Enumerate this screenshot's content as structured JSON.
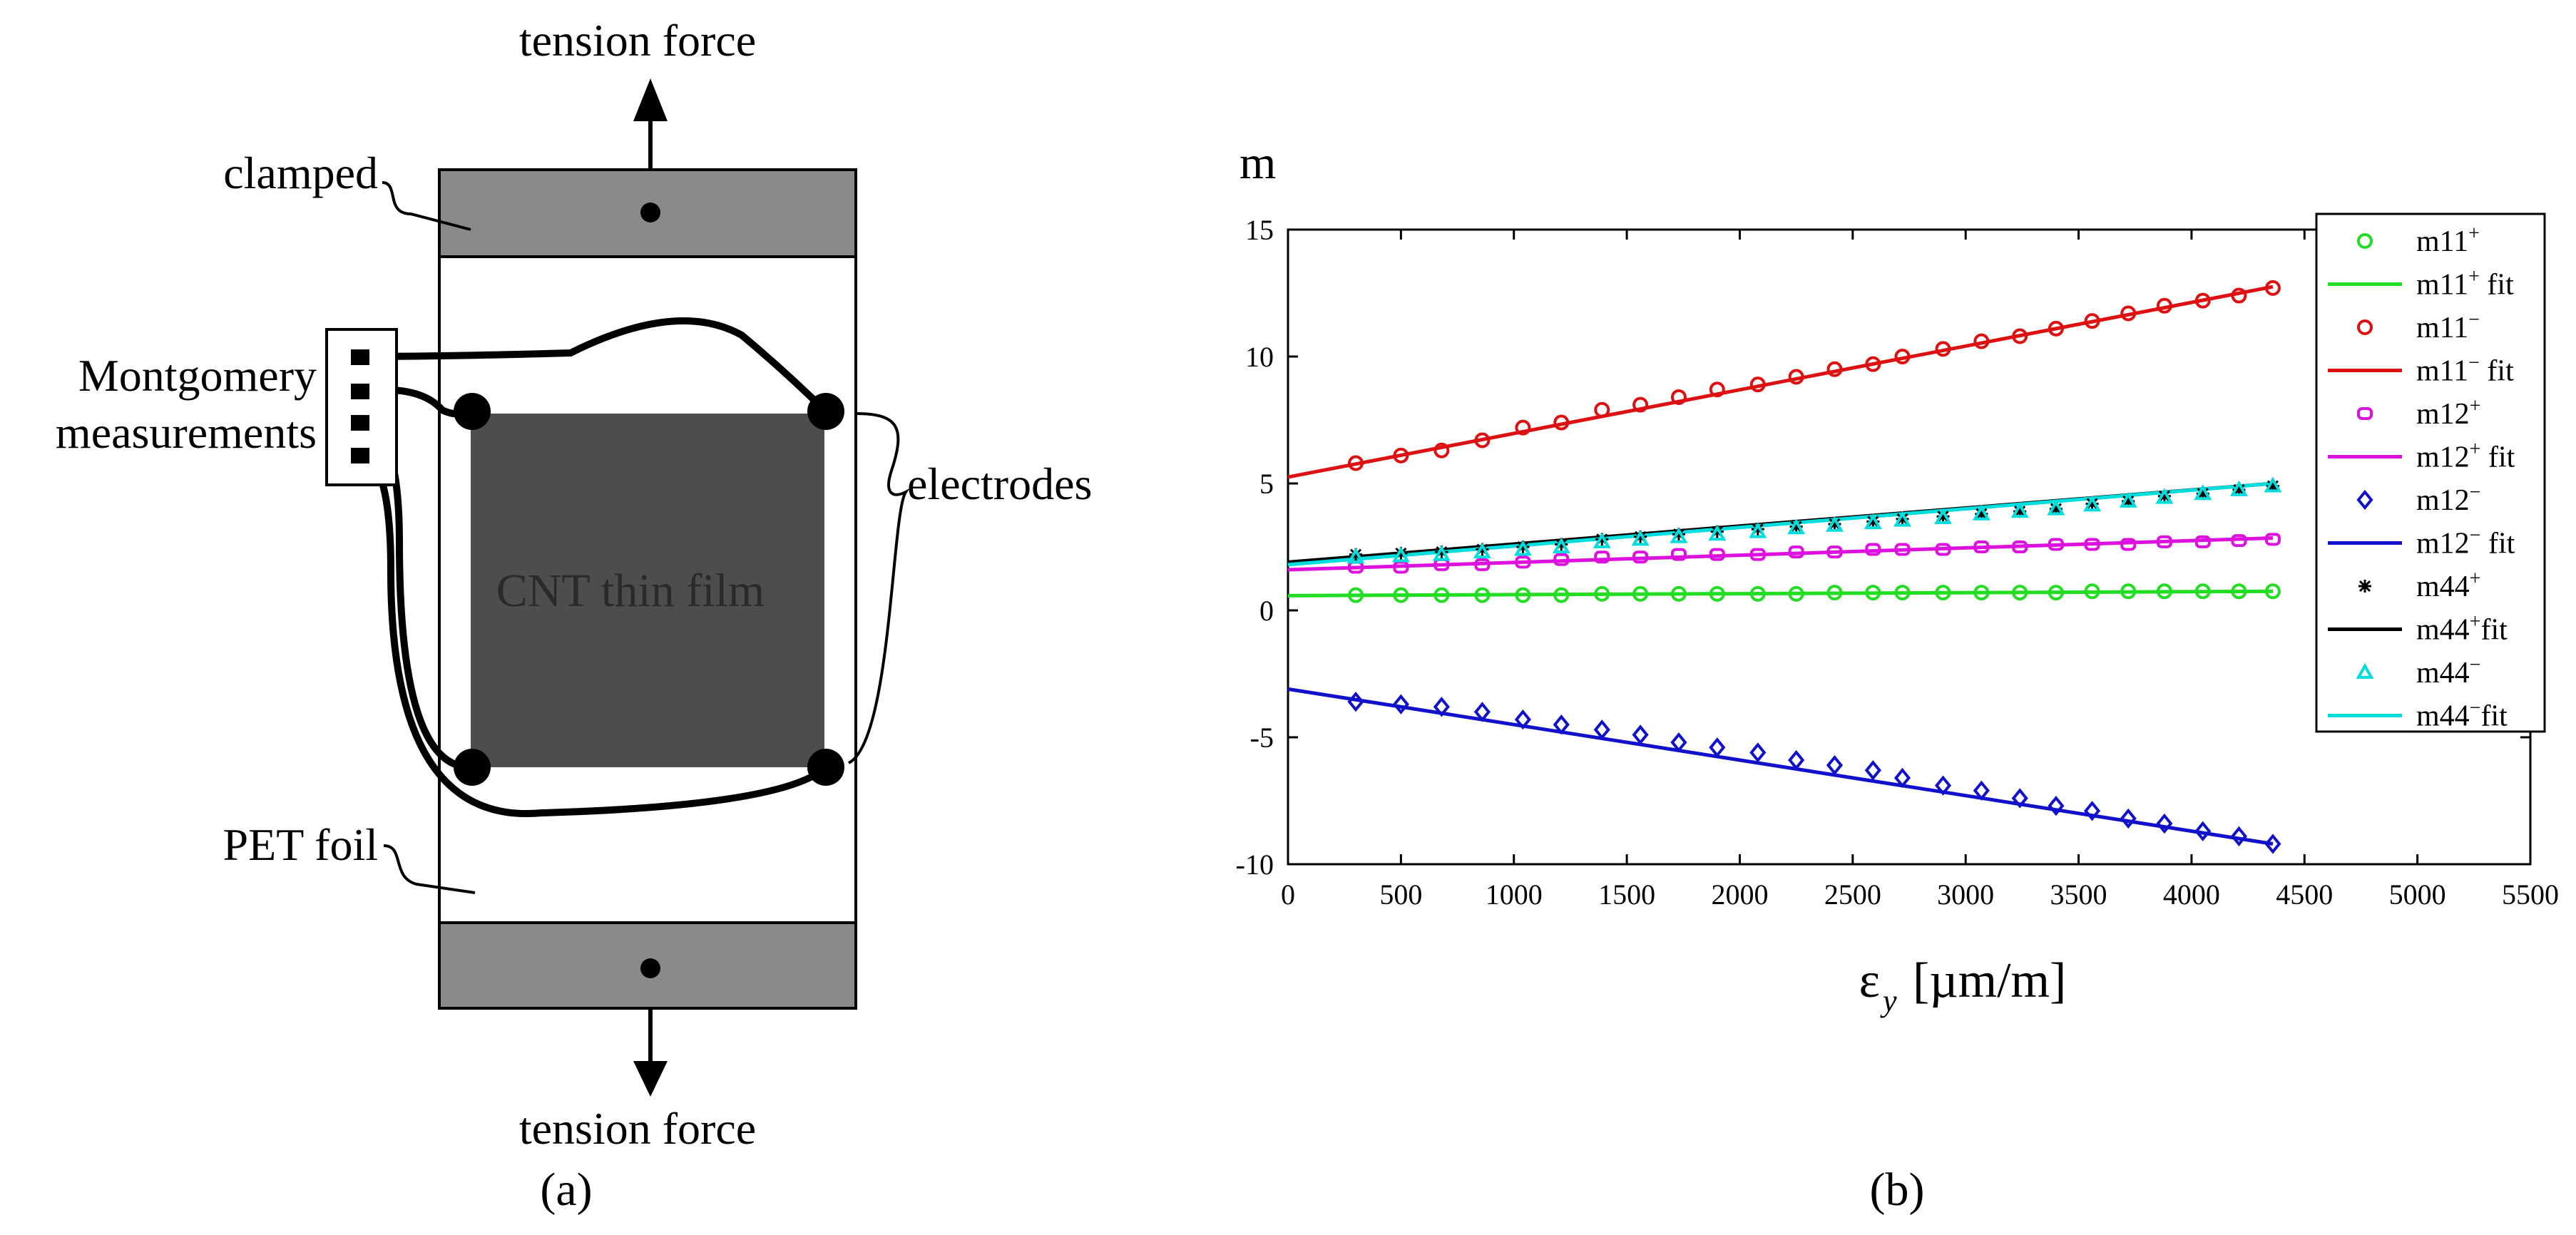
{
  "panel_a": {
    "label": "(a)",
    "tension_top": "tension force",
    "tension_bottom": "tension force",
    "clamped": "clamped",
    "montgomery_line1": "Montgomery",
    "montgomery_line2": "measurements",
    "electrodes": "electrodes",
    "film": "CNT thin film",
    "pet": "PET foil"
  },
  "panel_b": {
    "label": "(b)"
  },
  "chart_data": {
    "type": "scatter",
    "title": "",
    "ylabel": "m",
    "xlabel_main": "ε",
    "xlabel_sub": "y",
    "xlabel_unit": "[µm/m]",
    "xlim": [
      0,
      5500
    ],
    "ylim": [
      -10,
      15
    ],
    "xticks": [
      0,
      500,
      1000,
      1500,
      2000,
      2500,
      3000,
      3500,
      4000,
      4500,
      5000,
      5500
    ],
    "yticks": [
      15,
      10,
      5,
      0,
      -5,
      -10
    ],
    "legend_position": "top-right",
    "x": [
      300,
      500,
      680,
      860,
      1040,
      1210,
      1390,
      1560,
      1730,
      1900,
      2080,
      2250,
      2420,
      2590,
      2720,
      2900,
      3070,
      3240,
      3400,
      3560,
      3720,
      3880,
      4050,
      4210,
      4360
    ],
    "series": [
      {
        "name": "m11+",
        "base": "m11",
        "sup": "+",
        "color": "#22dd22",
        "marker": "circle",
        "values": [
          0.6,
          0.6,
          0.6,
          0.6,
          0.6,
          0.6,
          0.65,
          0.65,
          0.65,
          0.65,
          0.65,
          0.65,
          0.7,
          0.7,
          0.7,
          0.7,
          0.7,
          0.7,
          0.7,
          0.75,
          0.75,
          0.75,
          0.75,
          0.75,
          0.75
        ],
        "fit": [
          [
            0,
            0.58
          ],
          [
            4360,
            0.75
          ]
        ]
      },
      {
        "name": "m11−",
        "base": "m11",
        "sup": "−",
        "color": "#dd1111",
        "marker": "circle",
        "values": [
          5.8,
          6.1,
          6.3,
          6.7,
          7.2,
          7.4,
          7.9,
          8.1,
          8.4,
          8.7,
          8.9,
          9.2,
          9.5,
          9.7,
          10.0,
          10.3,
          10.6,
          10.8,
          11.1,
          11.4,
          11.7,
          12.0,
          12.2,
          12.4,
          12.7
        ],
        "fit": [
          [
            0,
            5.25
          ],
          [
            4360,
            12.75
          ]
        ]
      },
      {
        "name": "m12+",
        "base": "m12",
        "sup": "+",
        "color": "#dd11dd",
        "marker": "square",
        "values": [
          1.7,
          1.7,
          1.8,
          1.8,
          1.9,
          2.0,
          2.1,
          2.1,
          2.2,
          2.2,
          2.2,
          2.3,
          2.3,
          2.4,
          2.4,
          2.4,
          2.5,
          2.5,
          2.6,
          2.6,
          2.6,
          2.7,
          2.7,
          2.75,
          2.8
        ],
        "fit": [
          [
            0,
            1.6
          ],
          [
            4360,
            2.85
          ]
        ]
      },
      {
        "name": "m12−",
        "base": "m12",
        "sup": "−",
        "color": "#1111cc",
        "marker": "diamond",
        "values": [
          -3.6,
          -3.7,
          -3.8,
          -4.0,
          -4.3,
          -4.5,
          -4.7,
          -4.9,
          -5.2,
          -5.4,
          -5.6,
          -5.9,
          -6.1,
          -6.3,
          -6.6,
          -6.9,
          -7.1,
          -7.4,
          -7.7,
          -7.9,
          -8.2,
          -8.4,
          -8.7,
          -8.9,
          -9.2
        ],
        "fit": [
          [
            0,
            -3.1
          ],
          [
            4360,
            -9.2
          ]
        ]
      },
      {
        "name": "m44+",
        "base": "m44",
        "sup": "+",
        "color": "#000000",
        "marker": "star",
        "values": [
          2.2,
          2.25,
          2.3,
          2.4,
          2.5,
          2.6,
          2.8,
          2.9,
          3.0,
          3.1,
          3.2,
          3.3,
          3.4,
          3.5,
          3.6,
          3.7,
          3.8,
          3.9,
          4.0,
          4.2,
          4.3,
          4.5,
          4.6,
          4.75,
          4.9
        ],
        "fit": [
          [
            0,
            1.9
          ],
          [
            4360,
            5.0
          ]
        ]
      },
      {
        "name": "m44−",
        "base": "m44",
        "sup": "−",
        "color": "#00dddd",
        "marker": "triangle",
        "values": [
          2.1,
          2.15,
          2.2,
          2.3,
          2.4,
          2.5,
          2.7,
          2.8,
          2.9,
          3.0,
          3.1,
          3.25,
          3.35,
          3.45,
          3.55,
          3.65,
          3.8,
          3.9,
          4.0,
          4.15,
          4.3,
          4.45,
          4.6,
          4.75,
          4.9
        ],
        "fit": [
          [
            0,
            1.8
          ],
          [
            4360,
            5.0
          ]
        ]
      }
    ],
    "legend": [
      {
        "base": "m11",
        "sup": "+",
        "tail": "",
        "color": "#22dd22",
        "kind": "circle"
      },
      {
        "base": "m11",
        "sup": "+",
        "tail": " fit",
        "color": "#22dd22",
        "kind": "line"
      },
      {
        "base": "m11",
        "sup": "−",
        "tail": "",
        "color": "#dd1111",
        "kind": "circle"
      },
      {
        "base": "m11",
        "sup": "−",
        "tail": " fit",
        "color": "#dd1111",
        "kind": "line"
      },
      {
        "base": "m12",
        "sup": "+",
        "tail": "",
        "color": "#dd11dd",
        "kind": "square"
      },
      {
        "base": "m12",
        "sup": "+",
        "tail": " fit",
        "color": "#dd11dd",
        "kind": "line"
      },
      {
        "base": "m12",
        "sup": "−",
        "tail": "",
        "color": "#1111cc",
        "kind": "diamond"
      },
      {
        "base": "m12",
        "sup": "−",
        "tail": " fit",
        "color": "#1111cc",
        "kind": "line"
      },
      {
        "base": "m44",
        "sup": "+",
        "tail": "",
        "color": "#000000",
        "kind": "star"
      },
      {
        "base": "m44",
        "sup": "+",
        "tail": "fit",
        "color": "#000000",
        "kind": "line"
      },
      {
        "base": "m44",
        "sup": "−",
        "tail": "",
        "color": "#00dddd",
        "kind": "triangle"
      },
      {
        "base": "m44",
        "sup": "−",
        "tail": "fit",
        "color": "#00dddd",
        "kind": "line"
      }
    ]
  }
}
